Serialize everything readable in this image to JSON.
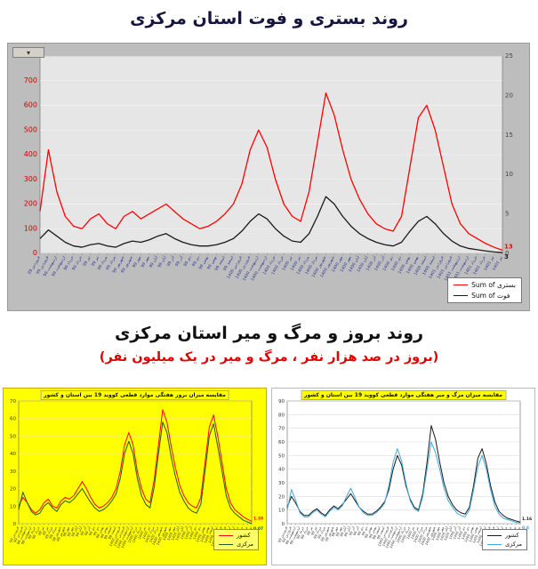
{
  "titles": {
    "top": "روند بستری و فوت استان مرکزی",
    "second": "روند بروز و مرگ و میر استان مرکزی",
    "subtitle": "(بروز در صد هزار نفر ، مرگ و میر در یک میلیون نفر)"
  },
  "pivot_button_glyph": "▾",
  "weeks": [
    "فروردین 99",
    "فروردین 99",
    "اردیبهشت 99",
    "اردیبهشت 99",
    "خرداد 99",
    "خرداد 99",
    "تیر 99",
    "تیر 99",
    "مرداد 99",
    "مرداد 99",
    "شهریور 99",
    "شهریور 99",
    "مهر 99",
    "مهر 99",
    "آبان 99",
    "آبان 99",
    "آذر 99",
    "آذر 99",
    "دی 99",
    "دی 99",
    "بهمن 99",
    "بهمن 99",
    "اسفند 99",
    "اسفند 99",
    "فروردین 1400",
    "فروردین 1400",
    "اردیبهشت 1400",
    "اردیبهشت 1400",
    "خرداد 1400",
    "خرداد 1400",
    "تیر 1400",
    "تیر 1400",
    "مرداد 1400",
    "مرداد 1400",
    "شهریور 1400",
    "شهریور 1400",
    "مهر 1400",
    "مهر 1400",
    "آبان 1400",
    "آبان 1400",
    "آذر 1400",
    "آذر 1400",
    "دی 1400",
    "دی 1400",
    "بهمن 1400",
    "بهمن 1400",
    "اسفند 1400",
    "اسفند 1400",
    "فروردین 1401",
    "فروردین 1401",
    "اردیبهشت 1401",
    "اردیبهشت 1401",
    "خرداد 1401",
    "خرداد 1401",
    "تیر 1401",
    "تیر 1401"
  ],
  "chart_data": [
    {
      "type": "line",
      "title": "",
      "categories_ref": "weeks",
      "ylim": [
        0,
        800
      ],
      "yticks": [
        0,
        100,
        200,
        300,
        400,
        500,
        600,
        700,
        800
      ],
      "y2ticks": [
        0,
        5,
        10,
        15,
        20,
        25
      ],
      "frame_bg": "#bdbdbd",
      "plot_bg": "#e6e6e6",
      "grid_color": "#f7f7f7",
      "ytick_color": "#cc0000",
      "xlabel_color": "#2a3596",
      "legend_position": "bottom-right",
      "series": [
        {
          "name": "Sum of بستری",
          "color": "#ff0000",
          "values": [
            170,
            420,
            250,
            150,
            110,
            100,
            140,
            160,
            120,
            100,
            150,
            170,
            140,
            160,
            180,
            200,
            170,
            140,
            120,
            100,
            110,
            130,
            160,
            200,
            280,
            420,
            500,
            430,
            300,
            200,
            150,
            130,
            250,
            450,
            650,
            560,
            420,
            300,
            220,
            160,
            120,
            100,
            90,
            150,
            350,
            550,
            600,
            500,
            350,
            200,
            120,
            80,
            60,
            40,
            25,
            13
          ],
          "end_label": "13"
        },
        {
          "name": "Sum of فوت",
          "color": "#1a1a1a",
          "values": [
            60,
            95,
            70,
            45,
            30,
            25,
            35,
            40,
            30,
            25,
            40,
            50,
            45,
            55,
            70,
            80,
            60,
            45,
            35,
            30,
            30,
            35,
            45,
            60,
            90,
            130,
            160,
            140,
            100,
            70,
            50,
            45,
            80,
            150,
            230,
            200,
            150,
            110,
            80,
            60,
            45,
            35,
            30,
            45,
            90,
            130,
            150,
            120,
            80,
            50,
            30,
            20,
            15,
            10,
            6,
            3
          ],
          "end_label": "3"
        }
      ]
    },
    {
      "type": "line",
      "title": "مقایسه میزان بروز هفتگی موارد قطعی کووید 19 بین استان و کشور",
      "categories_ref": "weeks",
      "ylim": [
        0,
        70
      ],
      "yticks": [
        0,
        10,
        20,
        30,
        40,
        50,
        60,
        70
      ],
      "frame_bg": "#ffff00",
      "plot_bg": "#ffff00",
      "grid_color": "#f0f07a",
      "ytick_color": "#333333",
      "xlabel_color": "#333333",
      "legend_position": "bottom-right",
      "series": [
        {
          "name": "کشور",
          "color": "#ff0000",
          "values": [
            10,
            15,
            12,
            8,
            6,
            8,
            12,
            14,
            10,
            9,
            13,
            15,
            14,
            16,
            20,
            24,
            20,
            15,
            11,
            9,
            10,
            12,
            15,
            20,
            30,
            45,
            52,
            45,
            30,
            20,
            14,
            12,
            25,
            45,
            65,
            58,
            44,
            32,
            22,
            16,
            12,
            10,
            9,
            15,
            35,
            55,
            62,
            50,
            35,
            20,
            12,
            8,
            6,
            4,
            2.5,
            1.38
          ],
          "end_label": "1.38"
        },
        {
          "name": "مرکزی",
          "color": "#1e5c1e",
          "values": [
            8,
            18,
            12,
            7,
            5,
            6,
            10,
            12,
            9,
            7,
            11,
            13,
            12,
            14,
            17,
            20,
            16,
            12,
            9,
            7,
            8,
            10,
            13,
            17,
            26,
            40,
            47,
            40,
            26,
            16,
            11,
            9,
            21,
            40,
            58,
            52,
            38,
            27,
            18,
            13,
            9,
            7,
            6,
            11,
            30,
            50,
            57,
            44,
            30,
            16,
            9,
            6,
            4,
            2,
            1,
            0.07
          ],
          "end_label": "0.07"
        }
      ]
    },
    {
      "type": "line",
      "title": "مقایسه میزان مرگ و میر هفتگی موارد قطعی کووید 19 بین استان و کشور",
      "categories_ref": "weeks",
      "ylim": [
        0,
        90
      ],
      "yticks": [
        0,
        10,
        20,
        30,
        40,
        50,
        60,
        70,
        80,
        90
      ],
      "frame_bg": "#ffffff",
      "plot_bg": "#ffffff",
      "grid_color": "#dddddd",
      "ytick_color": "#333333",
      "xlabel_color": "#333333",
      "legend_position": "bottom-right",
      "series": [
        {
          "name": "کشور",
          "color": "#1a1a1a",
          "values": [
            12,
            20,
            15,
            9,
            6,
            6,
            9,
            11,
            8,
            6,
            10,
            13,
            11,
            14,
            18,
            22,
            17,
            12,
            9,
            7,
            7,
            9,
            12,
            16,
            25,
            40,
            50,
            43,
            28,
            18,
            12,
            10,
            22,
            45,
            72,
            62,
            45,
            30,
            20,
            14,
            10,
            8,
            7,
            12,
            28,
            48,
            55,
            44,
            28,
            16,
            9,
            6,
            4,
            3,
            2,
            1.16
          ],
          "end_label": "1.16"
        },
        {
          "name": "مرکزی",
          "color": "#3fa9dc",
          "values": [
            10,
            25,
            17,
            8,
            5,
            5,
            8,
            10,
            7,
            5,
            9,
            12,
            10,
            13,
            20,
            26,
            19,
            12,
            8,
            6,
            6,
            8,
            11,
            15,
            28,
            45,
            55,
            46,
            30,
            17,
            11,
            9,
            20,
            40,
            60,
            52,
            40,
            26,
            17,
            12,
            8,
            6,
            5,
            10,
            25,
            42,
            50,
            40,
            25,
            13,
            7,
            4,
            3,
            2,
            1,
            0.6
          ],
          "end_label": "0.6"
        }
      ]
    }
  ],
  "colors": {
    "subtitle_red": "#e00000",
    "title_color": "#15153f"
  }
}
